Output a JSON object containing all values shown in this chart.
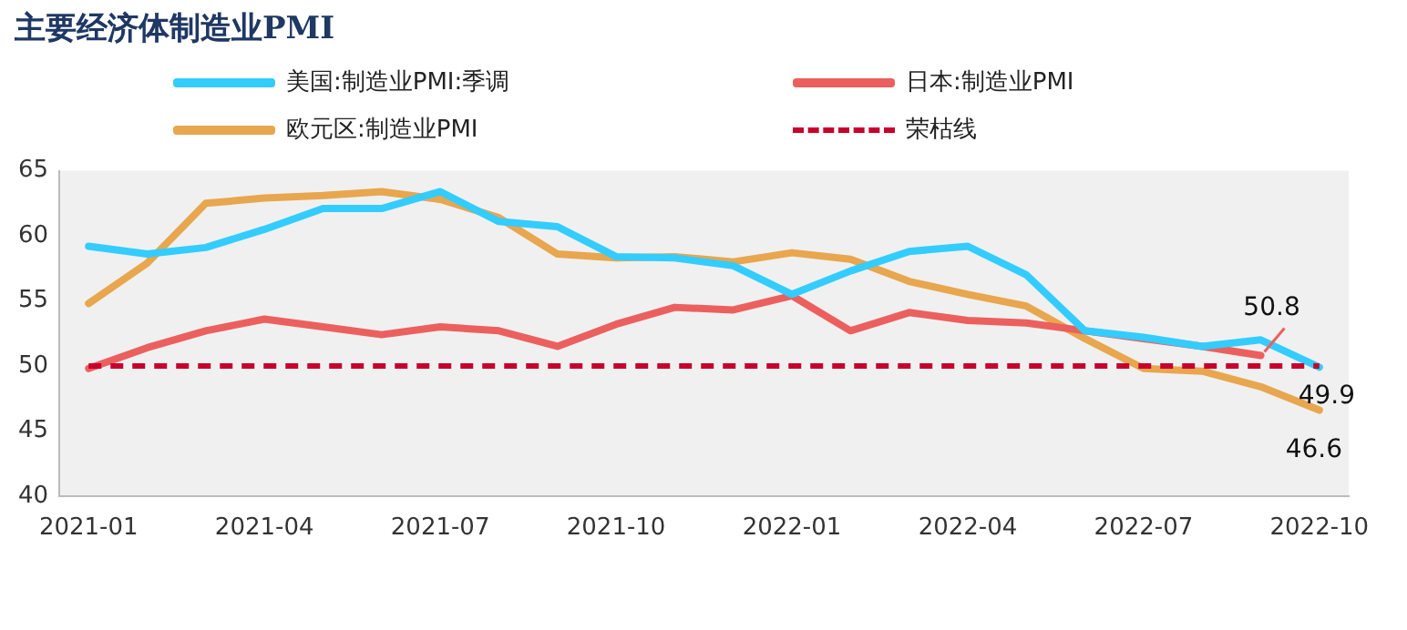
{
  "chart_data": {
    "type": "line",
    "title": "主要经济体制造业PMI",
    "categories": [
      "2021-01",
      null,
      null,
      "2021-04",
      null,
      null,
      "2021-07",
      null,
      null,
      "2021-10",
      null,
      null,
      "2022-01",
      null,
      null,
      "2022-04",
      null,
      null,
      "2022-07",
      null,
      null,
      "2022-10"
    ],
    "series": [
      {
        "name": "美国:制造业PMI:季调",
        "color": "#33ccff",
        "values": [
          59.2,
          58.6,
          59.1,
          60.5,
          62.1,
          62.1,
          63.4,
          61.1,
          60.7,
          58.4,
          58.3,
          57.7,
          55.5,
          57.3,
          58.8,
          59.2,
          57.0,
          52.7,
          52.2,
          51.5,
          52.0,
          49.9
        ]
      },
      {
        "name": "日本:制造业PMI",
        "color": "#eb605e",
        "values": [
          49.8,
          51.4,
          52.7,
          53.6,
          53.0,
          52.4,
          53.0,
          52.7,
          51.5,
          53.2,
          54.5,
          54.3,
          55.4,
          52.7,
          54.1,
          53.5,
          53.3,
          52.7,
          52.1,
          51.5,
          50.8,
          null
        ]
      },
      {
        "name": "欧元区:制造业PMI",
        "color": "#e8a64e",
        "values": [
          54.8,
          57.9,
          62.5,
          62.9,
          63.1,
          63.4,
          62.8,
          61.4,
          58.6,
          58.3,
          58.4,
          58.0,
          58.7,
          58.2,
          56.5,
          55.5,
          54.6,
          52.1,
          49.8,
          49.6,
          48.4,
          46.6
        ]
      }
    ],
    "ref_lines": [
      {
        "axis": "y",
        "value": 50,
        "label": "荣枯线",
        "color": "#c8002d",
        "line_style": "dashed"
      }
    ],
    "ylim": [
      40,
      65
    ],
    "yticks": [
      40,
      45,
      50,
      55,
      60,
      65
    ],
    "grid": false,
    "legend": "top",
    "marker": "none",
    "line_style": "solid",
    "annotations": [
      {
        "text": "50.8",
        "y": 50.8
      },
      {
        "text": "49.9",
        "x": "2022-10",
        "y": 49.9
      },
      {
        "text": "46.6",
        "x": "2022-10",
        "y": 46.6
      }
    ]
  }
}
